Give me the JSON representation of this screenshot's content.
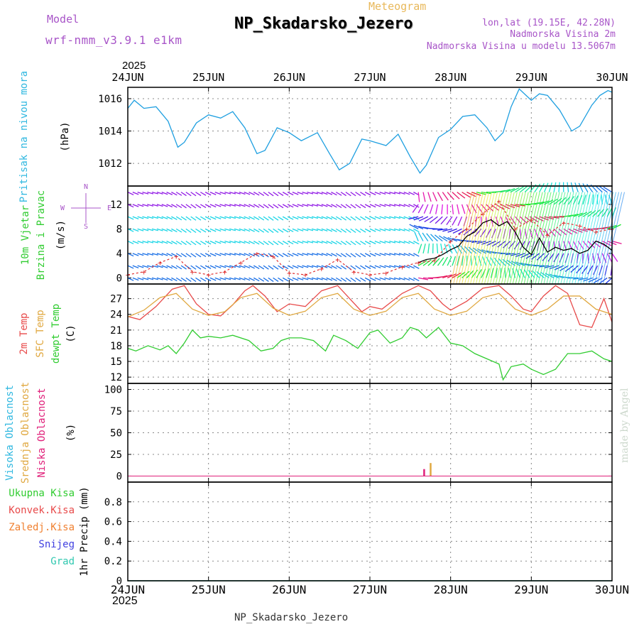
{
  "header": {
    "model_label": "Model",
    "model_name": "wrf-nmm_v3.9.1 e1km",
    "meteogram_label": "Meteogram",
    "station_title": "NP_Skadarsko_Jezero",
    "lonlat": "lon,lat (19.15E, 42.28N)",
    "elevation": "Nadmorska Visina 2m",
    "model_elevation": "Nadmorska Visina u modelu 13.5067m",
    "footer_title": "NP_Skadarsko_Jezero",
    "watermark": "made by Angel",
    "colors": {
      "title_purple": "#a855c8",
      "meteogram_orange": "#e8b85a",
      "title_black": "#000000"
    }
  },
  "time_axis": {
    "year": "2025",
    "ticks": [
      "24JUN",
      "25JUN",
      "26JUN",
      "27JUN",
      "28JUN",
      "29JUN",
      "30JUN"
    ]
  },
  "chart_data": [
    {
      "id": "pressure",
      "type": "line",
      "title": "",
      "ylabels": [
        "Pritisak na nivou mora"
      ],
      "unit": "(hPa)",
      "ylim": [
        1010.6,
        1016.7
      ],
      "yticks": [
        1012,
        1014,
        1016
      ],
      "grid": true,
      "series": [
        {
          "name": "Pritisak na nivou mora",
          "color": "#1e9fe0",
          "x": [
            0,
            0.08,
            0.2,
            0.35,
            0.5,
            0.62,
            0.7,
            0.85,
            1.0,
            1.15,
            1.3,
            1.45,
            1.6,
            1.7,
            1.85,
            2.0,
            2.15,
            2.35,
            2.5,
            2.62,
            2.75,
            2.9,
            3.0,
            3.2,
            3.35,
            3.5,
            3.62,
            3.7,
            3.85,
            4.0,
            4.15,
            4.3,
            4.45,
            4.55,
            4.65,
            4.75,
            4.85,
            5.0,
            5.1,
            5.2,
            5.35,
            5.5,
            5.6,
            5.75,
            5.85,
            5.95,
            6.0
          ],
          "y": [
            1015.4,
            1015.9,
            1015.4,
            1015.5,
            1014.6,
            1013.0,
            1013.3,
            1014.5,
            1015.0,
            1014.8,
            1015.2,
            1014.2,
            1012.6,
            1012.8,
            1014.2,
            1013.9,
            1013.4,
            1013.9,
            1012.6,
            1011.6,
            1012.0,
            1013.5,
            1013.4,
            1013.1,
            1013.8,
            1012.4,
            1011.4,
            1011.9,
            1013.6,
            1014.1,
            1014.9,
            1015.0,
            1014.2,
            1013.4,
            1013.9,
            1015.5,
            1016.6,
            1015.9,
            1016.3,
            1016.2,
            1015.3,
            1014.0,
            1014.3,
            1015.6,
            1016.2,
            1016.5,
            1016.4
          ]
        }
      ]
    },
    {
      "id": "wind",
      "type": "scatter",
      "title": "",
      "ylabels": [
        "10m Vjetar",
        "Brzina i Pravac"
      ],
      "unit": "(m/s)",
      "direction_key": [
        "W",
        "E",
        "N",
        "S"
      ],
      "ylim": [
        -1,
        15
      ],
      "yticks": [
        0,
        4,
        8,
        12
      ],
      "barb_levels": [
        0,
        2,
        4,
        6,
        8,
        10,
        12,
        14
      ],
      "series": [
        {
          "name": "speed",
          "color": "#000000",
          "x": [
            3.6,
            3.7,
            3.8,
            3.9,
            4.0,
            4.1,
            4.2,
            4.3,
            4.4,
            4.5,
            4.6,
            4.7,
            4.8,
            4.9,
            5.0,
            5.1,
            5.2,
            5.3,
            5.4,
            5.5,
            5.6,
            5.7,
            5.8,
            5.9,
            6.0
          ],
          "y": [
            2.5,
            3.0,
            3.2,
            3.8,
            4.6,
            5.2,
            6.8,
            7.5,
            9.0,
            9.5,
            8.5,
            9.2,
            7.5,
            5.0,
            3.8,
            6.5,
            4.2,
            5.0,
            4.5,
            4.8,
            4.0,
            4.5,
            6.0,
            5.5,
            4.5
          ]
        },
        {
          "name": "gust",
          "color": "#e03030",
          "x": [
            0,
            0.2,
            0.4,
            0.6,
            0.8,
            1.0,
            1.2,
            1.4,
            1.6,
            1.8,
            2.0,
            2.2,
            2.4,
            2.6,
            2.8,
            3.0,
            3.2,
            3.4,
            3.6,
            3.8,
            4.0,
            4.2,
            4.4,
            4.6,
            4.8,
            5.0,
            5.2,
            5.4,
            5.6,
            5.8,
            6.0
          ],
          "y": [
            0.5,
            1.0,
            2.5,
            3.5,
            1.0,
            0.5,
            1.0,
            2.5,
            4.0,
            3.5,
            0.8,
            0.5,
            1.5,
            3.0,
            1.0,
            0.5,
            0.8,
            1.8,
            2.5,
            2.8,
            6.0,
            8.0,
            10.5,
            12.5,
            8.0,
            9.5,
            7.0,
            9.0,
            8.5,
            7.5,
            8.0
          ]
        }
      ]
    },
    {
      "id": "temperature",
      "type": "line",
      "title": "",
      "ylabels": [
        "2m Temp",
        "SFC Temp",
        "dewpt Temp"
      ],
      "unit": "(C)",
      "ylim": [
        10.8,
        29.8
      ],
      "yticks": [
        12,
        15,
        18,
        21,
        24,
        27
      ],
      "grid": true,
      "series": [
        {
          "name": "2m Temp",
          "color": "#e84a4a",
          "x": [
            0,
            0.15,
            0.35,
            0.55,
            0.7,
            0.85,
            1.0,
            1.15,
            1.3,
            1.45,
            1.55,
            1.7,
            1.85,
            2.0,
            2.2,
            2.4,
            2.6,
            2.75,
            2.9,
            3.0,
            3.15,
            3.4,
            3.6,
            3.75,
            3.9,
            4.0,
            4.2,
            4.4,
            4.6,
            4.75,
            4.9,
            5.0,
            5.15,
            5.3,
            5.45,
            5.6,
            5.75,
            5.9,
            6.0
          ],
          "y": [
            23.6,
            23.0,
            25.5,
            28.8,
            29.5,
            26.0,
            24.0,
            23.7,
            25.8,
            28.5,
            29.5,
            27.5,
            24.5,
            26.0,
            25.5,
            28.5,
            29.5,
            27.0,
            24.5,
            25.5,
            25.0,
            28.0,
            29.5,
            28.5,
            26.0,
            24.8,
            26.5,
            29.0,
            29.5,
            27.5,
            25.0,
            24.5,
            27.5,
            29.5,
            28.0,
            22.0,
            21.5,
            27.0,
            22.5
          ]
        },
        {
          "name": "SFC Temp",
          "color": "#e0a840",
          "x": [
            0,
            0.2,
            0.4,
            0.6,
            0.8,
            1.0,
            1.2,
            1.4,
            1.6,
            1.8,
            2.0,
            2.2,
            2.4,
            2.6,
            2.8,
            3.0,
            3.2,
            3.4,
            3.6,
            3.8,
            4.0,
            4.2,
            4.4,
            4.6,
            4.8,
            5.0,
            5.2,
            5.4,
            5.6,
            5.8,
            6.0
          ],
          "y": [
            23.5,
            24.8,
            27.2,
            28.0,
            25.0,
            23.8,
            24.5,
            27.2,
            28.0,
            25.2,
            23.8,
            24.6,
            27.2,
            28.0,
            25.0,
            23.8,
            24.6,
            27.2,
            28.0,
            25.0,
            23.8,
            24.6,
            27.2,
            28.0,
            25.0,
            23.8,
            25.0,
            27.5,
            27.5,
            25.0,
            24.0
          ]
        },
        {
          "name": "dewpt Temp",
          "color": "#30cc30",
          "x": [
            0,
            0.1,
            0.25,
            0.4,
            0.5,
            0.6,
            0.7,
            0.8,
            0.9,
            1.0,
            1.15,
            1.3,
            1.5,
            1.65,
            1.8,
            1.9,
            2.0,
            2.15,
            2.3,
            2.45,
            2.55,
            2.7,
            2.85,
            3.0,
            3.1,
            3.25,
            3.4,
            3.5,
            3.6,
            3.7,
            3.85,
            4.0,
            4.15,
            4.3,
            4.45,
            4.6,
            4.65,
            4.75,
            4.9,
            5.0,
            5.15,
            5.3,
            5.45,
            5.6,
            5.75,
            5.9,
            6.0
          ],
          "y": [
            17.5,
            17.0,
            18.0,
            17.2,
            18.0,
            16.5,
            18.5,
            21.0,
            19.5,
            19.8,
            19.5,
            20.0,
            19.0,
            17.0,
            17.5,
            19.0,
            19.5,
            19.5,
            19.0,
            17.0,
            20.0,
            19.0,
            17.5,
            20.5,
            21.0,
            18.5,
            19.5,
            21.5,
            21.0,
            19.5,
            21.5,
            18.5,
            18.0,
            16.5,
            15.5,
            14.5,
            11.5,
            14.0,
            14.5,
            13.5,
            12.5,
            13.5,
            16.5,
            16.5,
            17.0,
            15.5,
            15.0
          ]
        }
      ]
    },
    {
      "id": "clouds",
      "type": "bar",
      "title": "",
      "ylabels": [
        "Visoka Oblacnost",
        "Srednja Oblacnost",
        "Niska Oblacnost"
      ],
      "unit": "(%)",
      "ylim": [
        -7,
        107
      ],
      "yticks": [
        0,
        25,
        50,
        75,
        100
      ],
      "grid": true,
      "series": [
        {
          "name": "Visoka Oblacnost",
          "color": "#30b8e0",
          "x": [],
          "y": []
        },
        {
          "name": "Srednja Oblacnost",
          "color": "#e0a840",
          "x": [
            3.75
          ],
          "y": [
            15
          ]
        },
        {
          "name": "Niska Oblacnost",
          "color": "#e0207a",
          "x": [
            3.67
          ],
          "y": [
            8
          ]
        }
      ]
    },
    {
      "id": "precip",
      "type": "bar",
      "title": "",
      "ylabels": [
        "1hr Precip (mm)"
      ],
      "legend_entries": [
        "Ukupna Kisa",
        "Konvek.Kisa",
        "Zaledj.Kisa",
        "Snijeg",
        "Grad"
      ],
      "ylim": [
        0,
        1.0
      ],
      "yticks": [
        0,
        0.2,
        0.4,
        0.6,
        0.8
      ],
      "grid": true,
      "series": [
        {
          "name": "Ukupna Kisa",
          "color": "#30cc30",
          "x": [],
          "y": []
        },
        {
          "name": "Konvek.Kisa",
          "color": "#e84a4a",
          "x": [],
          "y": []
        },
        {
          "name": "Zaledj.Kisa",
          "color": "#f08030",
          "x": [],
          "y": []
        },
        {
          "name": "Snijeg",
          "color": "#4040e0",
          "x": [],
          "y": []
        },
        {
          "name": "Grad",
          "color": "#30c8b0",
          "x": [],
          "y": []
        }
      ]
    }
  ]
}
